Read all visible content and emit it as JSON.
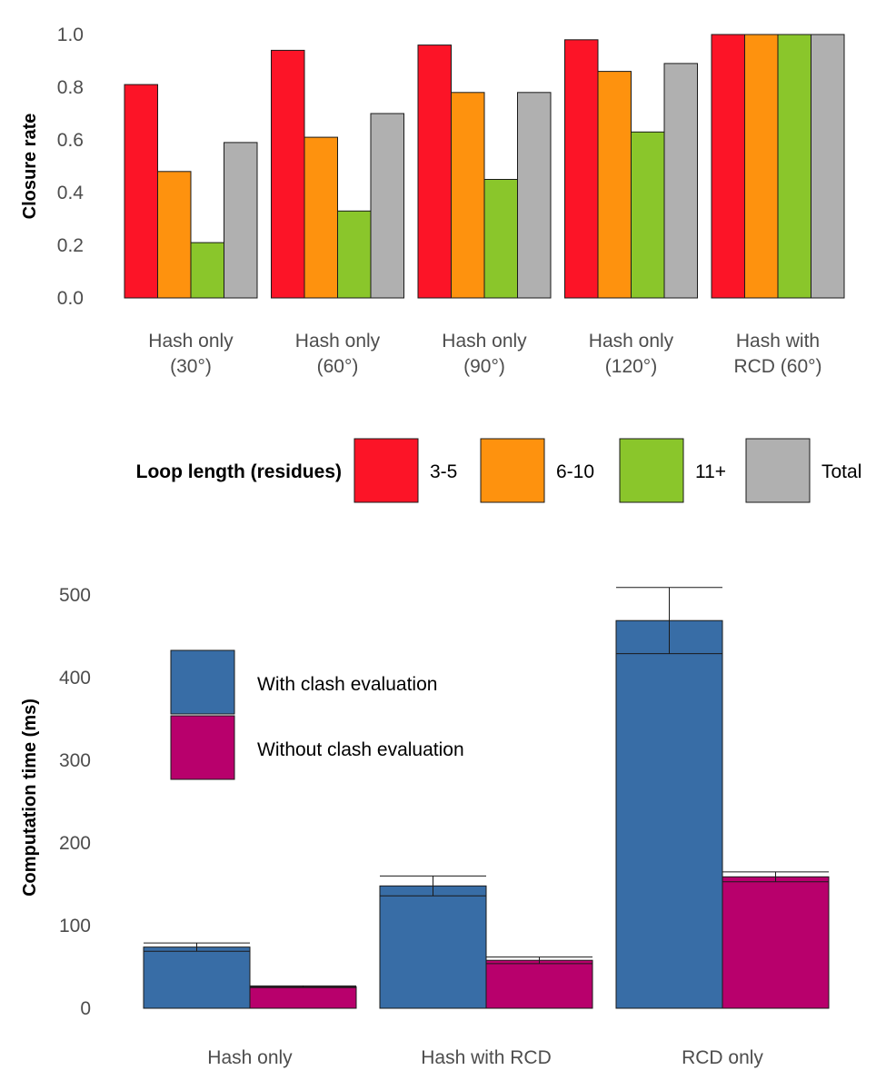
{
  "chart_data": [
    {
      "type": "bar",
      "ylabel": "Closure rate",
      "ylim": [
        0,
        1.0
      ],
      "yticks": [
        "0.0",
        "0.2",
        "0.4",
        "0.6",
        "0.8",
        "1.0"
      ],
      "categories": [
        [
          "Hash only",
          "(30°)"
        ],
        [
          "Hash only",
          "(60°)"
        ],
        [
          "Hash only",
          "(90°)"
        ],
        [
          "Hash only",
          "(120°)"
        ],
        [
          "Hash with",
          "RCD (60°)"
        ]
      ],
      "legend_title": "Loop length (residues)",
      "legend_position": "bottom",
      "series": [
        {
          "name": "3-5",
          "color": "#FC1427",
          "values": [
            0.81,
            0.94,
            0.96,
            0.98,
            1.0
          ]
        },
        {
          "name": "6-10",
          "color": "#FE920E",
          "values": [
            0.48,
            0.61,
            0.78,
            0.86,
            1.0
          ]
        },
        {
          "name": "11+",
          "color": "#8AC62B",
          "values": [
            0.21,
            0.33,
            0.45,
            0.63,
            1.0
          ]
        },
        {
          "name": "Total",
          "color": "#B0B0B0",
          "values": [
            0.59,
            0.7,
            0.78,
            0.89,
            1.0
          ]
        }
      ]
    },
    {
      "type": "bar",
      "ylabel": "Computation time (ms)",
      "ylim": [
        0,
        500
      ],
      "yticks": [
        "0",
        "100",
        "200",
        "300",
        "400",
        "500"
      ],
      "categories": [
        "Hash only",
        "Hash with RCD",
        "RCD only"
      ],
      "legend_position": "top-left",
      "series": [
        {
          "name": "With clash evaluation",
          "color": "#386DA6",
          "values": [
            74,
            148,
            469
          ],
          "error": [
            5,
            12,
            40
          ]
        },
        {
          "name": "Without clash evaluation",
          "color": "#B8006C",
          "values": [
            26,
            58,
            159
          ],
          "error": [
            1,
            4,
            6
          ]
        }
      ]
    }
  ]
}
